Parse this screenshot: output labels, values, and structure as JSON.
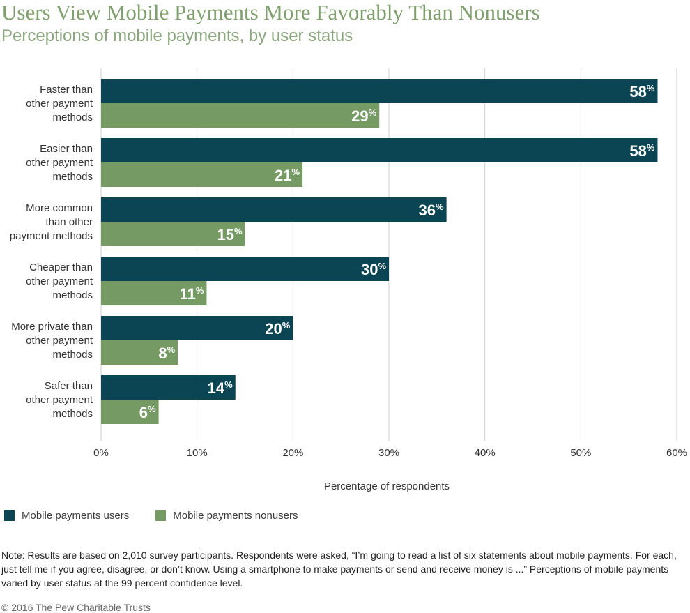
{
  "title": "Users View Mobile Payments More Favorably Than Nonusers",
  "subtitle": "Perceptions of mobile payments, by user status",
  "legend": {
    "users": "Mobile payments users",
    "nonusers": "Mobile payments nonusers"
  },
  "colors": {
    "users": "#0b4553",
    "nonusers": "#759a64",
    "grid": "#cfcfcf",
    "title": "#7f9f6d"
  },
  "note": "Note: Results are based on 2,010 survey participants. Respondents were asked, “I’m going to read a list of six statements about mobile payments. For each, just tell me if you agree, disagree, or don’t know. Using a smartphone to make payments or send and receive money is ...” Perceptions of mobile payments varied by user status at the 99 percent confidence level.",
  "credit": "© 2016 The Pew Charitable Trusts",
  "chart_data": {
    "type": "bar",
    "orientation": "horizontal",
    "categories": [
      [
        "Faster than",
        "other payment",
        "methods"
      ],
      [
        "Easier than",
        "other payment",
        "methods"
      ],
      [
        "More common",
        "than other",
        "payment methods"
      ],
      [
        "Cheaper than",
        "other payment",
        "methods"
      ],
      [
        "More private than",
        "other payment",
        "methods"
      ],
      [
        "Safer than",
        "other payment",
        "methods"
      ]
    ],
    "series": [
      {
        "name": "Mobile payments users",
        "values": [
          58,
          58,
          36,
          30,
          20,
          14
        ]
      },
      {
        "name": "Mobile payments nonusers",
        "values": [
          29,
          21,
          15,
          11,
          8,
          6
        ]
      }
    ],
    "value_suffix": "%",
    "xlabel": "Percentage of respondents",
    "xlim": [
      0,
      60
    ],
    "xticks": [
      "0%",
      "10%",
      "20%",
      "30%",
      "40%",
      "50%",
      "60%"
    ],
    "grid": true,
    "legend_position": "bottom-left"
  }
}
